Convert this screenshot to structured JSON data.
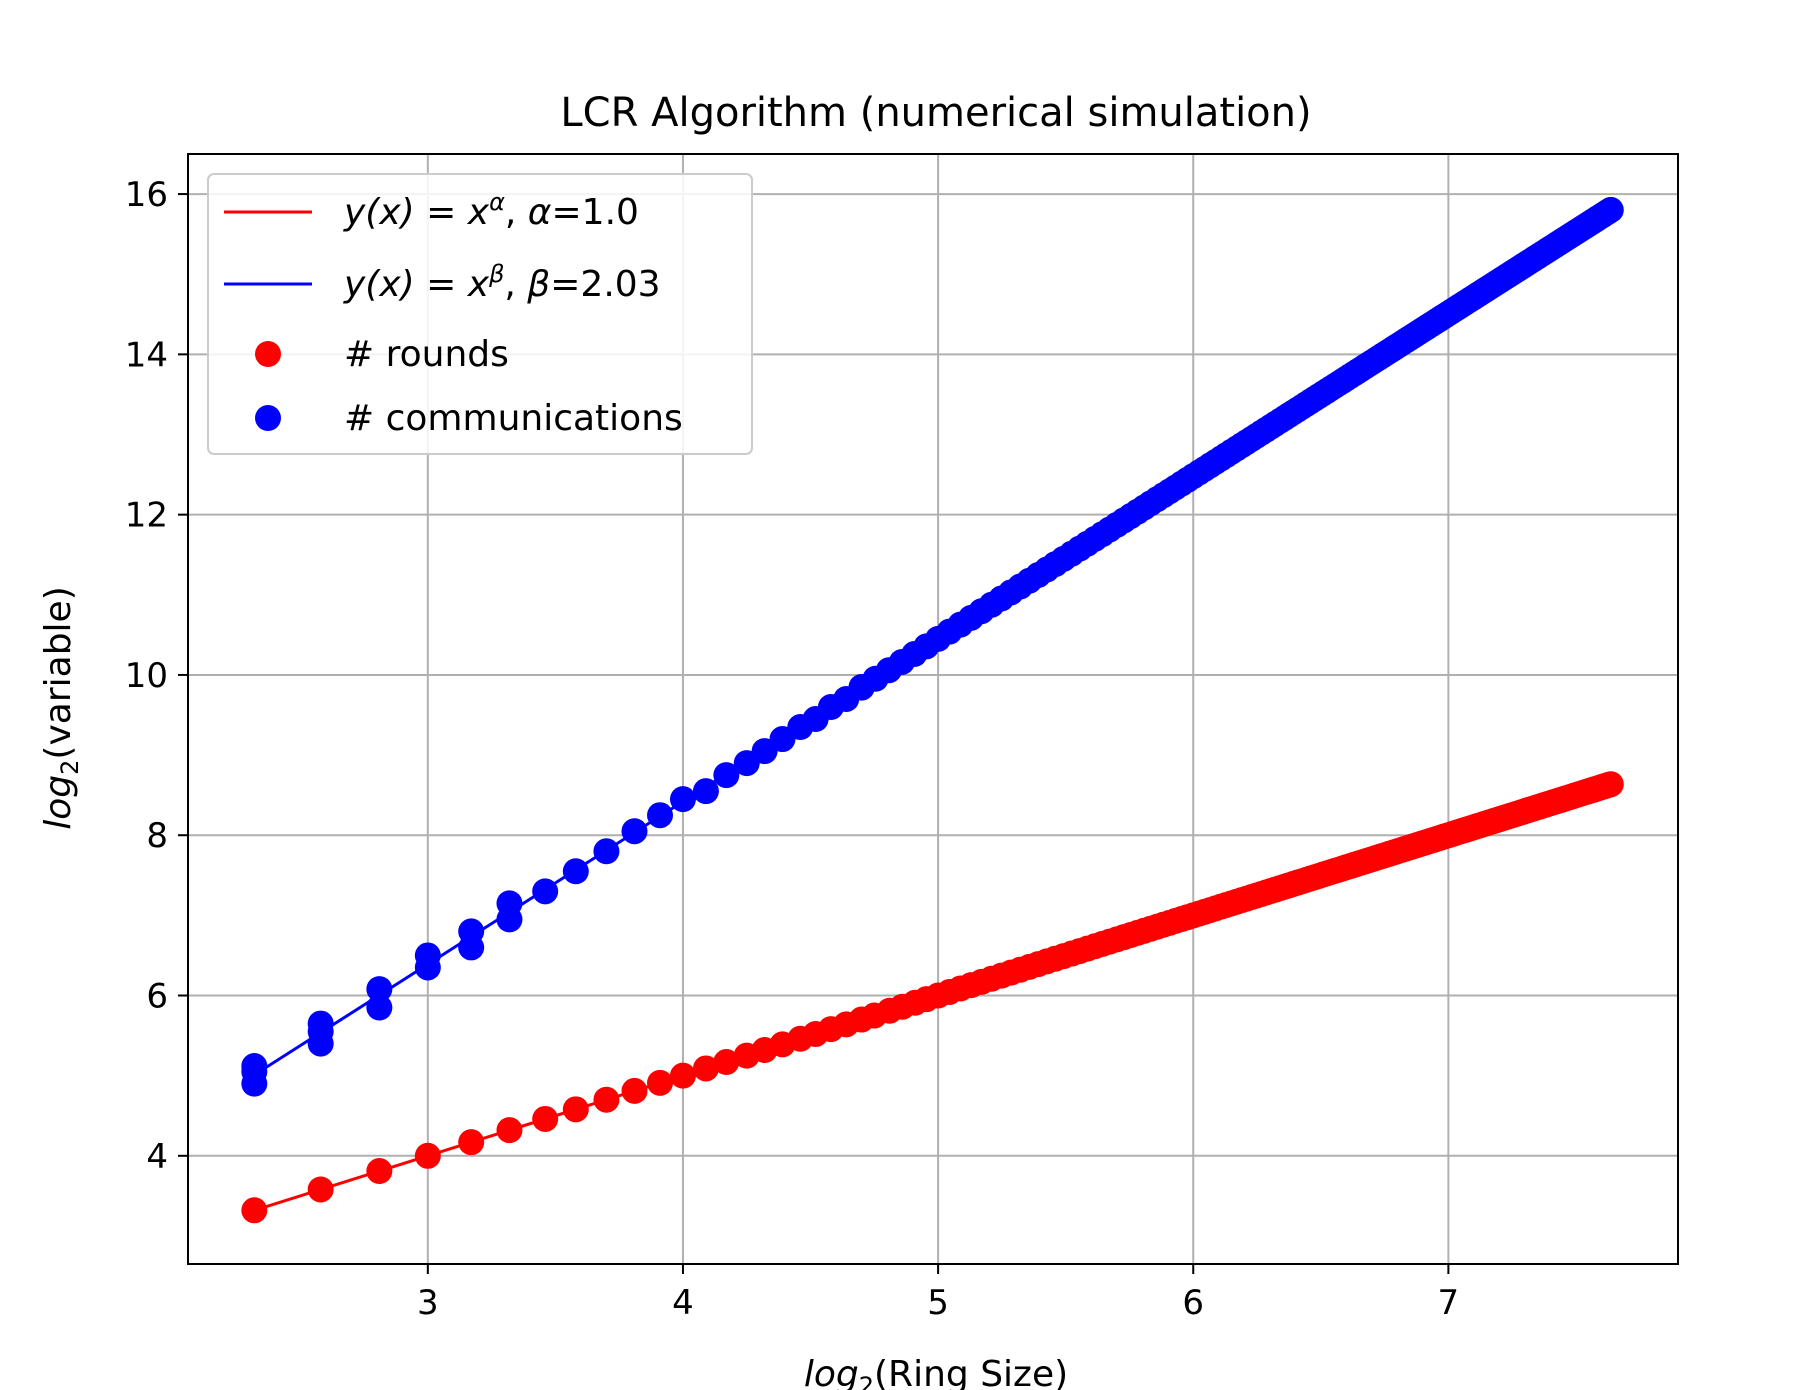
{
  "chart_data": {
    "type": "scatter",
    "title": "LCR Algorithm (numerical simulation)",
    "xlabel_math": "log",
    "xlabel_sub": "2",
    "xlabel_rest": "(Ring Size)",
    "ylabel_math": "log",
    "ylabel_sub": "2",
    "ylabel_rest": "(variable)",
    "xlim": [
      2.06,
      7.9
    ],
    "ylim": [
      2.65,
      16.5
    ],
    "xticks": [
      3,
      4,
      5,
      6,
      7
    ],
    "yticks": [
      4,
      6,
      8,
      10,
      12,
      14,
      16
    ],
    "grid": true,
    "legend_position": "upper-left",
    "series": [
      {
        "name": "# rounds",
        "kind": "scatter",
        "color": "#ff0000",
        "x_start": 2.32,
        "x_end": 7.64,
        "slope": 1.0,
        "intercept": 1.0,
        "dense": true,
        "sample_x": [
          2.32,
          2.58,
          2.81,
          3.0,
          3.17,
          3.32,
          3.46,
          3.58,
          3.7,
          3.81,
          3.91,
          4.0,
          4.09,
          4.17,
          4.25,
          4.32,
          4.39,
          4.46,
          4.52,
          4.58,
          4.64,
          4.7,
          4.75,
          4.81,
          4.86,
          4.91
        ],
        "sample_y": [
          3.32,
          3.58,
          3.81,
          4.0,
          4.17,
          4.32,
          4.46,
          4.58,
          4.7,
          4.81,
          4.91,
          5.0,
          5.09,
          5.17,
          5.25,
          5.32,
          5.39,
          5.46,
          5.52,
          5.58,
          5.64,
          5.7,
          5.75,
          5.81,
          5.86,
          5.91
        ]
      },
      {
        "name": "# communications",
        "kind": "scatter",
        "color": "#0000ff",
        "x_start": 2.32,
        "x_end": 7.64,
        "slope": 2.03,
        "intercept": 0.3,
        "dense": true,
        "sample_x": [
          2.32,
          2.32,
          2.32,
          2.58,
          2.58,
          2.58,
          2.81,
          2.81,
          3.0,
          3.0,
          3.17,
          3.17,
          3.32,
          3.32,
          3.46,
          3.58,
          3.7,
          3.81,
          3.91,
          4.0,
          4.09,
          4.17,
          4.25,
          4.32,
          4.39,
          4.46,
          4.52,
          4.58,
          4.64,
          4.7
        ],
        "sample_y": [
          4.9,
          5.05,
          5.12,
          5.4,
          5.55,
          5.65,
          5.85,
          6.08,
          6.35,
          6.5,
          6.6,
          6.8,
          6.95,
          7.15,
          7.3,
          7.55,
          7.8,
          8.05,
          8.25,
          8.45,
          8.55,
          8.75,
          8.9,
          9.05,
          9.2,
          9.35,
          9.45,
          9.6,
          9.7,
          9.85
        ]
      },
      {
        "kind": "line",
        "color": "#ff0000",
        "legend_math": "y(x) = x",
        "legend_sup": "α",
        "legend_rest": ", ",
        "legend_param": "α",
        "legend_value": "=1.0",
        "x_start": 2.32,
        "x_end": 7.64,
        "slope": 1.0,
        "intercept": 1.0
      },
      {
        "kind": "line",
        "color": "#0000ff",
        "legend_math": "y(x) = x",
        "legend_sup": "β",
        "legend_rest": ", ",
        "legend_param": "β",
        "legend_value": "=2.03",
        "x_start": 2.32,
        "x_end": 7.64,
        "slope": 2.03,
        "intercept": 0.3
      }
    ]
  }
}
